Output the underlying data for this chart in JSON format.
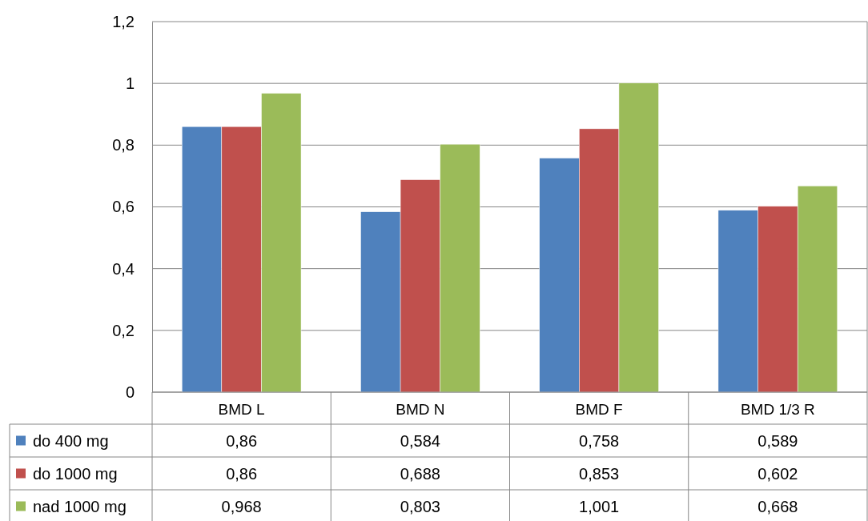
{
  "chart_data": {
    "type": "bar",
    "categories": [
      "BMD L",
      "BMD N",
      "BMD F",
      "BMD 1/3 R"
    ],
    "series": [
      {
        "name": "do 400 mg",
        "color": "#4f81bd",
        "values": [
          0.86,
          0.584,
          0.758,
          0.589
        ],
        "value_labels": [
          "0,86",
          "0,584",
          "0,758",
          "0,589"
        ]
      },
      {
        "name": "do 1000 mg",
        "color": "#c0504d",
        "values": [
          0.86,
          0.688,
          0.853,
          0.602
        ],
        "value_labels": [
          "0,86",
          "0,688",
          "0,853",
          "0,602"
        ]
      },
      {
        "name": "nad 1000 mg",
        "color": "#9bbb59",
        "values": [
          0.968,
          0.803,
          1.001,
          0.668
        ],
        "value_labels": [
          "0,968",
          "0,803",
          "1,001",
          "0,668"
        ]
      }
    ],
    "ylim": [
      0,
      1.2
    ],
    "yticks": [
      0,
      {
        "value": 0.2,
        "label": "0,2"
      },
      {
        "value": 0.4,
        "label": "0,4"
      },
      {
        "value": 0.6,
        "label": "0,6"
      },
      {
        "value": 0.8,
        "label": "0,8"
      },
      1,
      {
        "value": 1.2,
        "label": "1,2"
      }
    ],
    "grid": "y",
    "legend": "bottom"
  }
}
